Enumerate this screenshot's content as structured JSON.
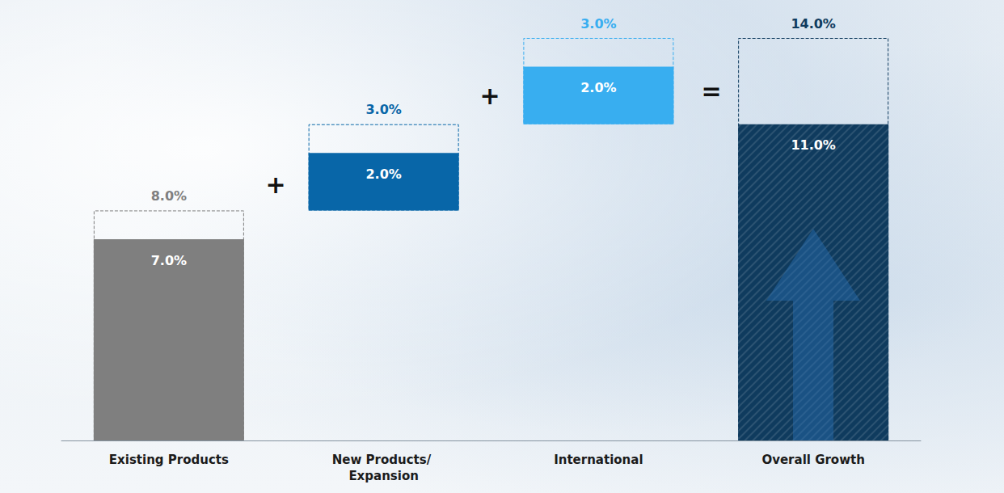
{
  "chart_data": {
    "type": "waterfall",
    "categories": [
      "Existing Products",
      "New Products/ Expansion",
      "International",
      "Overall Growth"
    ],
    "values": [
      7,
      2,
      2,
      11
    ],
    "value_labels": [
      "7.0%",
      "2.0%",
      "2.0%",
      "11.0%"
    ],
    "high_values": [
      8,
      3,
      3,
      14
    ],
    "high_value_labels": [
      "8.0%",
      "3.0%",
      "3.0%",
      "14.0%"
    ],
    "colors": [
      "#7f7f7f",
      "#0866a8",
      "#38aef0",
      "#0f3b5e"
    ],
    "operators": [
      "+",
      "+",
      "="
    ],
    "data_labels": true,
    "tick_labels": false,
    "grid": false
  }
}
